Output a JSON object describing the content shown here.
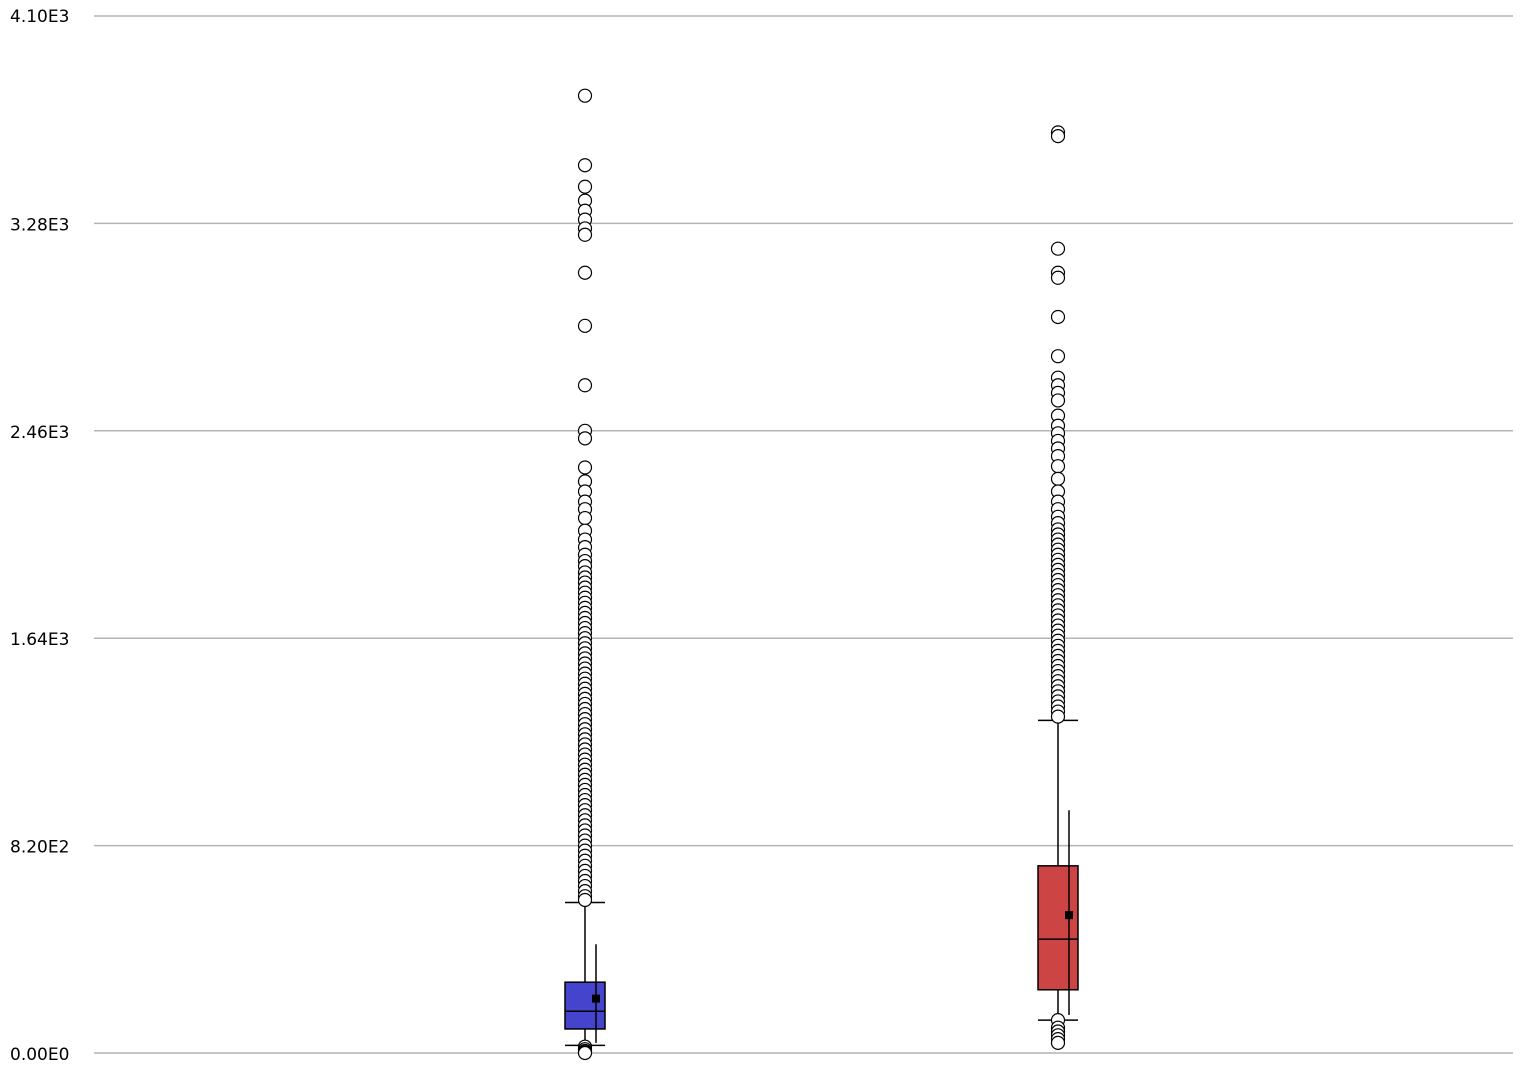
{
  "chart_data": {
    "type": "boxplot",
    "ylim": [
      0,
      4100
    ],
    "yticks": [
      {
        "value": 0,
        "label": "0.00E0"
      },
      {
        "value": 820,
        "label": "8.20E2"
      },
      {
        "value": 1640,
        "label": "1.64E3"
      },
      {
        "value": 2460,
        "label": "2.46E3"
      },
      {
        "value": 3280,
        "label": "3.28E3"
      },
      {
        "value": 4100,
        "label": "4.10E3"
      }
    ],
    "grid": true,
    "series": [
      {
        "color": "#4444cc",
        "whisker_low": 30,
        "q1": 95,
        "median": 165,
        "q3": 280,
        "whisker_high": 595,
        "mean": 215,
        "sd_low": 40,
        "sd_high": 430,
        "outliers_high": [
          3785,
          3510,
          3425,
          3370,
          3330,
          3295,
          3260,
          3235,
          3085,
          2875,
          2640,
          2460,
          2430,
          2315,
          2260,
          2220,
          2180,
          2150,
          2115,
          2065,
          2030,
          2000,
          1970,
          1945,
          1925,
          1900,
          1880,
          1860,
          1840,
          1820,
          1800,
          1780,
          1760,
          1740,
          1720,
          1700,
          1680,
          1660,
          1640,
          1620,
          1600,
          1580,
          1560,
          1540,
          1520,
          1500,
          1480,
          1460,
          1440,
          1420,
          1400,
          1380,
          1360,
          1340,
          1320,
          1300,
          1280,
          1260,
          1240,
          1220,
          1200,
          1180,
          1160,
          1140,
          1120,
          1100,
          1080,
          1060,
          1040,
          1020,
          1000,
          980,
          960,
          940,
          920,
          900,
          880,
          860,
          840,
          820,
          800,
          780,
          760,
          740,
          720,
          700,
          680,
          660,
          640,
          620,
          605
        ],
        "outliers_low": [
          25,
          15,
          8,
          3,
          0
        ]
      },
      {
        "color": "#cc4444",
        "whisker_low": 130,
        "q1": 250,
        "median": 450,
        "q3": 740,
        "whisker_high": 1315,
        "mean": 545,
        "sd_low": 150,
        "sd_high": 960,
        "outliers_high": [
          3640,
          3625,
          3180,
          3085,
          3065,
          2910,
          2755,
          2670,
          2640,
          2610,
          2580,
          2520,
          2480,
          2450,
          2420,
          2390,
          2360,
          2320,
          2270,
          2220,
          2180,
          2150,
          2120,
          2095,
          2070,
          2050,
          2030,
          2010,
          1990,
          1970,
          1950,
          1930,
          1910,
          1890,
          1870,
          1850,
          1830,
          1810,
          1790,
          1770,
          1750,
          1730,
          1710,
          1690,
          1670,
          1650,
          1630,
          1610,
          1590,
          1570,
          1550,
          1530,
          1510,
          1490,
          1470,
          1450,
          1430,
          1410,
          1390,
          1370,
          1350,
          1330
        ],
        "outliers_low": [
          130,
          100,
          85,
          70,
          55,
          40
        ]
      }
    ]
  }
}
